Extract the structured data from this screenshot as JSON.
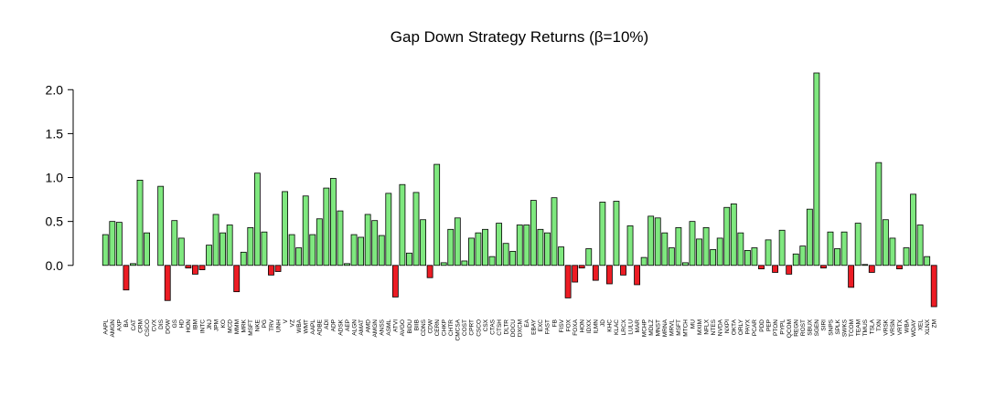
{
  "chart_data": {
    "type": "bar",
    "title": "Gap Down Strategy Returns (β=10%)",
    "categories": [
      "AAPL",
      "AMGN",
      "AXP",
      "BA",
      "CAT",
      "CRM",
      "CSCO",
      "CVX",
      "DIS",
      "DOW",
      "GS",
      "HD",
      "HON",
      "IBM",
      "INTC",
      "JNJ",
      "JPM",
      "KO",
      "MCD",
      "MMM",
      "MRK",
      "MSFT",
      "NKE",
      "PG",
      "TRV",
      "UNH",
      "V",
      "VZ",
      "WBA",
      "WMT",
      "AAPL",
      "ADBE",
      "ADI",
      "ADP",
      "ADSK",
      "AEP",
      "ALGN",
      "AMAT",
      "AMD",
      "AMGN",
      "ANSS",
      "ASML",
      "ATVI",
      "AVGO",
      "BIDU",
      "BIIB",
      "CDNS",
      "CDW",
      "CERN",
      "CHKP",
      "CHTR",
      "CMCSA",
      "COST",
      "CPRT",
      "CSCO",
      "CSX",
      "CTAS",
      "CTSH",
      "DLTR",
      "DOCU",
      "DXCM",
      "EA",
      "EBAY",
      "EXC",
      "FAST",
      "FB",
      "FISV",
      "FOX",
      "FOXA",
      "HON",
      "IDXX",
      "ILMN",
      "JD",
      "KHC",
      "KLAC",
      "LRCX",
      "LULU",
      "MAR",
      "MCHP",
      "MDLZ",
      "MNST",
      "MRNA",
      "MRVL",
      "MSFT",
      "MTCH",
      "MU",
      "MXIM",
      "NFLX",
      "NTES",
      "NVDA",
      "NXPI",
      "OKTA",
      "ORLY",
      "PAYX",
      "PCAR",
      "PDD",
      "PEP",
      "PTON",
      "PYPL",
      "QCOM",
      "REGN",
      "ROST",
      "SBUX",
      "SGEN",
      "SIRI",
      "SNPS",
      "SPLK",
      "SWKS",
      "TCOM",
      "TEAM",
      "TMUS",
      "TSLA",
      "TXN",
      "VRSK",
      "VRSN",
      "VRTX",
      "WBA",
      "WDAY",
      "XEL",
      "XLNX",
      "ZM"
    ],
    "values": [
      0.35,
      0.5,
      0.49,
      -0.28,
      0.02,
      0.97,
      0.37,
      0,
      0.9,
      -0.4,
      0.51,
      0.31,
      -0.03,
      -0.1,
      -0.05,
      0.23,
      0.58,
      0.37,
      0.46,
      -0.3,
      0.15,
      0.43,
      1.05,
      0.38,
      -0.11,
      -0.07,
      0.84,
      0.35,
      0.2,
      0.79,
      0.35,
      0.53,
      0.88,
      0.99,
      0.62,
      0.02,
      0.35,
      0.32,
      0.58,
      0.51,
      0.34,
      0.82,
      -0.36,
      0.92,
      0.14,
      0.83,
      0.52,
      -0.14,
      1.15,
      0.03,
      0.41,
      0.54,
      0.05,
      0.31,
      0.37,
      0.41,
      0.1,
      0.48,
      0.25,
      0.16,
      0.46,
      0.46,
      0.74,
      0.41,
      0.37,
      0.77,
      0.21,
      -0.37,
      -0.19,
      -0.03,
      0.19,
      -0.17,
      0.72,
      -0.21,
      0.73,
      -0.11,
      0.45,
      -0.22,
      0.09,
      0.56,
      0.54,
      0.37,
      0.2,
      0.43,
      0.03,
      0.5,
      0.3,
      0.43,
      0.18,
      0.31,
      0.66,
      0.7,
      0.37,
      0.17,
      0.2,
      -0.04,
      0.29,
      -0.08,
      0.4,
      -0.1,
      0.13,
      0.22,
      0.64,
      2.19,
      -0.03,
      0.38,
      0.19,
      0.38,
      -0.25,
      0.48,
      0.01,
      -0.08,
      1.17,
      0.52,
      0.31,
      -0.04,
      0.2,
      0.81,
      0.46,
      0.1,
      -0.47
    ],
    "colors": {
      "positive": "#7fe87f",
      "negative": "#ec1c24"
    },
    "ylim": [
      -0.58,
      2.3
    ],
    "yticks": [
      {
        "value": 0,
        "label": "0.0"
      },
      {
        "value": 0.5,
        "label": "0.5"
      },
      {
        "value": 1,
        "label": "1.0"
      },
      {
        "value": 1.5,
        "label": "1.5"
      },
      {
        "value": 2,
        "label": "2.0"
      }
    ]
  }
}
